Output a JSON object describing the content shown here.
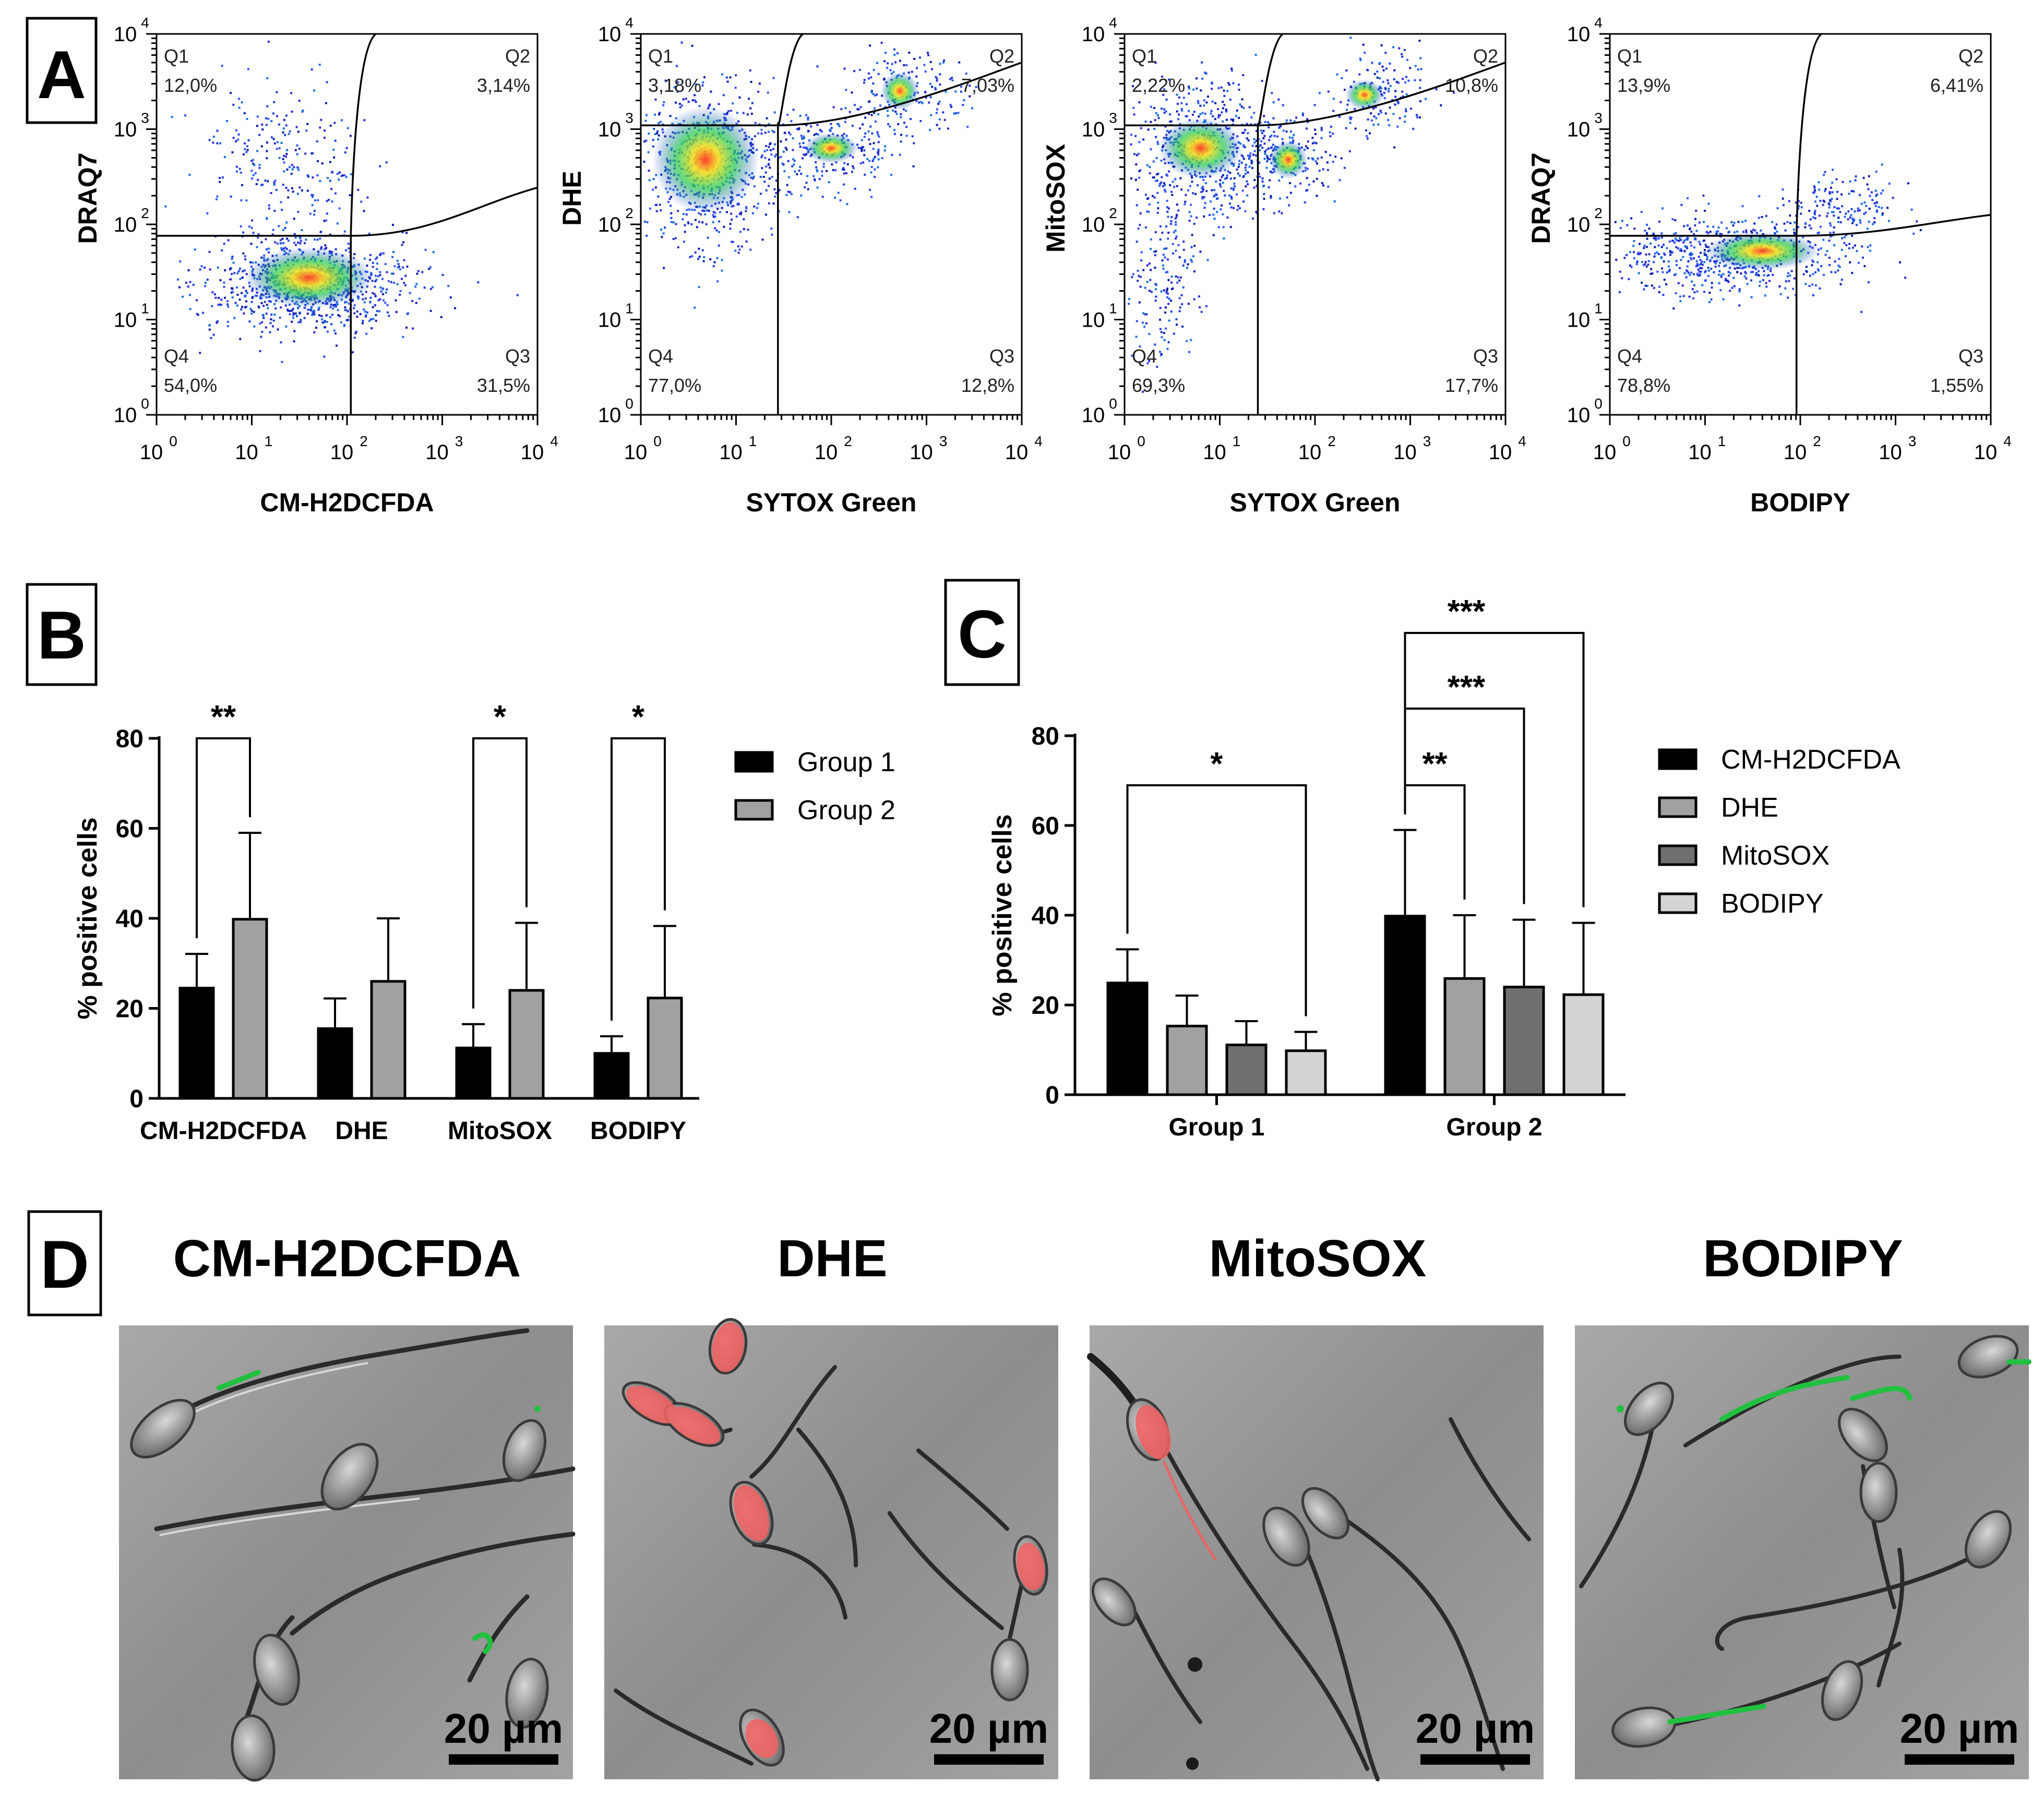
{
  "panel_a": {
    "label": "A",
    "tick_labels": [
      "10",
      "10",
      "10",
      "10",
      "10"
    ],
    "tick_exponents": [
      "0",
      "1",
      "2",
      "3",
      "4"
    ],
    "plots": [
      {
        "y_label": "DRAQ7",
        "x_label": "CM-H2DCFDA",
        "quadrants": [
          {
            "name": "Q1",
            "value": "12,0%"
          },
          {
            "name": "Q2",
            "value": "3,14%"
          },
          {
            "name": "Q3",
            "value": "31,5%"
          },
          {
            "name": "Q4",
            "value": "54,0%"
          }
        ]
      },
      {
        "y_label": "DHE",
        "x_label": "SYTOX Green",
        "quadrants": [
          {
            "name": "Q1",
            "value": "3,18%"
          },
          {
            "name": "Q2",
            "value": "7,03%"
          },
          {
            "name": "Q3",
            "value": "12,8%"
          },
          {
            "name": "Q4",
            "value": "77,0%"
          }
        ]
      },
      {
        "y_label": "MitoSOX",
        "x_label": "SYTOX Green",
        "quadrants": [
          {
            "name": "Q1",
            "value": "2,22%"
          },
          {
            "name": "Q2",
            "value": "10,8%"
          },
          {
            "name": "Q3",
            "value": "17,7%"
          },
          {
            "name": "Q4",
            "value": "69,3%"
          }
        ]
      },
      {
        "y_label": "DRAQ7",
        "x_label": "BODIPY",
        "quadrants": [
          {
            "name": "Q1",
            "value": "13,9%"
          },
          {
            "name": "Q2",
            "value": "6,41%"
          },
          {
            "name": "Q3",
            "value": "1,55%"
          },
          {
            "name": "Q4",
            "value": "78,8%"
          }
        ]
      }
    ]
  },
  "panel_d": {
    "label": "D",
    "titles": [
      "CM-H2DCFDA",
      "DHE",
      "MitoSOX",
      "BODIPY"
    ],
    "scale_bar": "20 µm",
    "colors": {
      "green_stain": "#22c040",
      "red_stain": "#f06262",
      "background": "#8d8d8d"
    }
  },
  "chart_data": [
    {
      "panel": "B",
      "type": "bar",
      "ylabel": "% positive cells",
      "ylim": [
        0,
        80
      ],
      "yticks": [
        "0",
        "20",
        "40",
        "60",
        "80"
      ],
      "categories": [
        "CM-H2DCFDA",
        "DHE",
        "MitoSOX",
        "BODIPY"
      ],
      "series": [
        {
          "name": "Group 1",
          "color": "#000000",
          "values": [
            24.5,
            15.5,
            11.2,
            10.0
          ],
          "errors": [
            7.6,
            6.7,
            5.3,
            3.8
          ]
        },
        {
          "name": "Group 2",
          "color": "#a1a1a1",
          "values": [
            39.8,
            26.0,
            24.0,
            22.3
          ],
          "errors": [
            19.2,
            14.0,
            15.0,
            16.0
          ]
        }
      ],
      "significance": [
        {
          "category": "CM-H2DCFDA",
          "label": "**"
        },
        {
          "category": "MitoSOX",
          "label": "*"
        },
        {
          "category": "BODIPY",
          "label": "*"
        }
      ]
    },
    {
      "panel": "C",
      "type": "bar",
      "ylabel": "% positive cells",
      "ylim": [
        0,
        80
      ],
      "yticks": [
        "0",
        "20",
        "40",
        "60",
        "80"
      ],
      "categories": [
        "Group 1",
        "Group 2"
      ],
      "series": [
        {
          "name": "CM-H2DCFDA",
          "color": "#000000",
          "values": [
            24.9,
            39.8
          ],
          "errors": [
            7.5,
            19.2
          ]
        },
        {
          "name": "DHE",
          "color": "#a1a1a1",
          "values": [
            15.3,
            25.9
          ],
          "errors": [
            6.8,
            14.1
          ]
        },
        {
          "name": "MitoSOX",
          "color": "#6f6f6f",
          "values": [
            11.1,
            24.0
          ],
          "errors": [
            5.3,
            15.0
          ]
        },
        {
          "name": "BODIPY",
          "color": "#d3d3d3",
          "values": [
            9.8,
            22.3
          ],
          "errors": [
            4.2,
            16.0
          ]
        }
      ],
      "significance": [
        {
          "group": "Group 1",
          "from": "CM-H2DCFDA",
          "to": "BODIPY",
          "label": "*"
        },
        {
          "group": "Group 2",
          "from": "CM-H2DCFDA",
          "to": "DHE",
          "label": "**"
        },
        {
          "group": "Group 2",
          "from": "CM-H2DCFDA",
          "to": "MitoSOX",
          "label": "***"
        },
        {
          "group": "Group 2",
          "from": "CM-H2DCFDA",
          "to": "BODIPY",
          "label": "***"
        }
      ]
    }
  ]
}
